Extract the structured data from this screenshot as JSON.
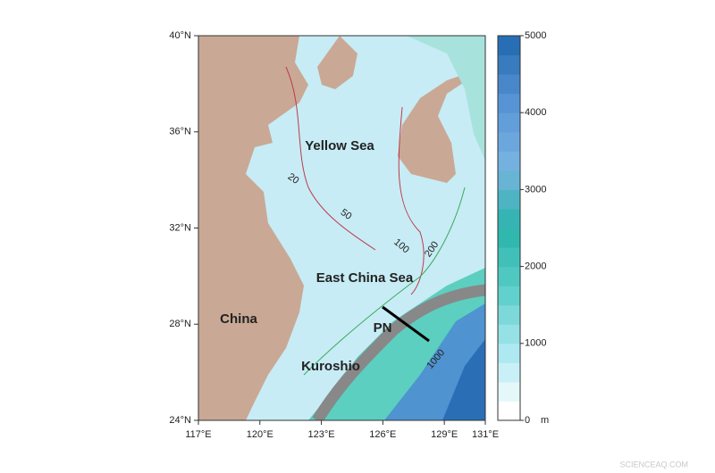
{
  "map": {
    "lonlim": [
      117,
      131
    ],
    "latlim": [
      24,
      40
    ],
    "lon_ticks": [
      {
        "value": 117,
        "label": "117°E"
      },
      {
        "value": 120,
        "label": "120°E"
      },
      {
        "value": 123,
        "label": "123°E"
      },
      {
        "value": 126,
        "label": "126°E"
      },
      {
        "value": 129,
        "label": "129°E"
      },
      {
        "value": 131,
        "label": "131°E"
      }
    ],
    "lat_ticks": [
      {
        "value": 24,
        "label": "24°N"
      },
      {
        "value": 28,
        "label": "28°N"
      },
      {
        "value": 32,
        "label": "32°N"
      },
      {
        "value": 36,
        "label": "36°N"
      },
      {
        "value": 40,
        "label": "40°N"
      }
    ],
    "labels": {
      "yellow_sea": "Yellow Sea",
      "east_china_sea": "East China Sea",
      "china": "China",
      "kuroshio": "Kuroshio",
      "pn": "PN"
    },
    "contour_labels": [
      "20",
      "50",
      "100",
      "200",
      "1000"
    ],
    "colorbar": {
      "lim": [
        0,
        5000
      ],
      "ticks": [
        0,
        1000,
        2000,
        3000,
        4000,
        5000
      ],
      "unit": "m"
    },
    "watermark": "SCIENCEAQ.COM"
  }
}
